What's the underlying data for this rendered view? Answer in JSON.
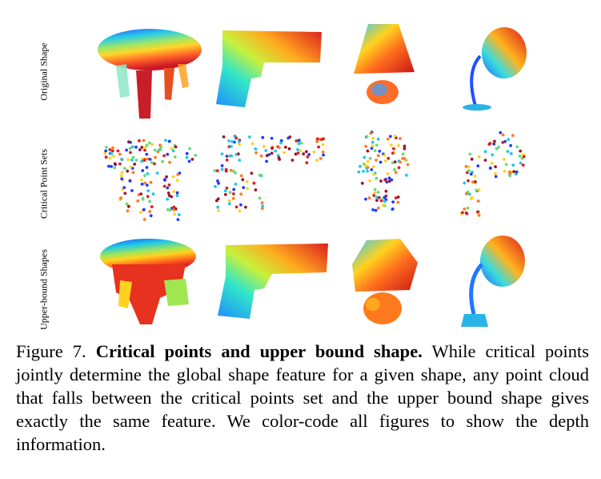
{
  "figure": {
    "row_labels": [
      "Original Shape",
      "Critical Point Sets",
      "Upper-bound Shapes"
    ],
    "columns": [
      "table",
      "gun",
      "lamp-shade",
      "desk-lamp"
    ]
  },
  "caption": {
    "label": "Figure 7.",
    "title": "Critical points and upper bound shape.",
    "body": "While critical points jointly determine the global shape feature for a given shape, any point cloud that falls between the critical points set and the upper bound shape gives exactly the same feature. We color-code all figures to show the depth information."
  }
}
